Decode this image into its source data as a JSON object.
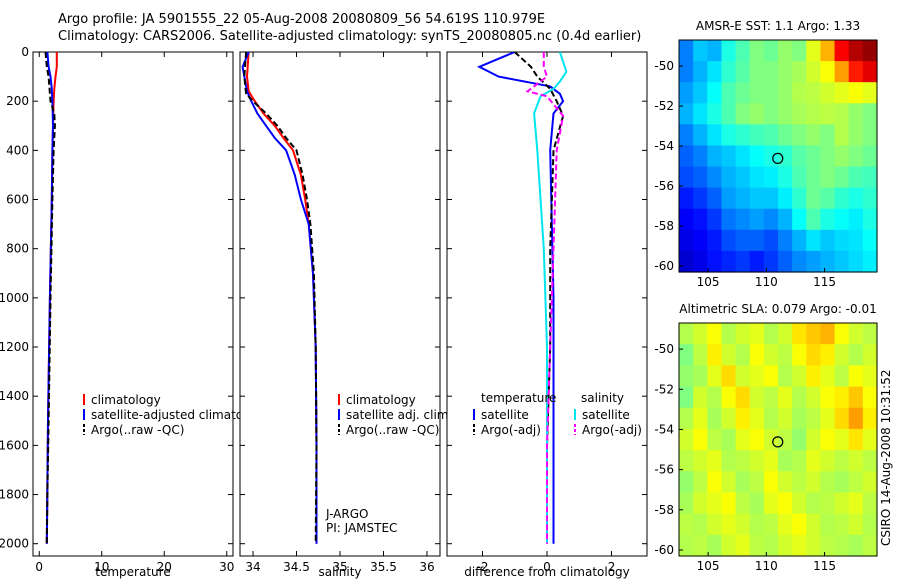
{
  "title": {
    "line1": "Argo profile: JA 5901555_22 05-Aug-2008 20080809_56 54.619S 110.979E",
    "line2": "Climatology: CARS2006. Satellite-adjusted climatology: synTS_20080805.nc (0.4d earlier)"
  },
  "colors": {
    "climatology": "#ff0000",
    "satellite": "#0000ff",
    "argo": "#000000",
    "satellite_salinity": "#00e5ee",
    "argo_salinity": "#ff00ff"
  },
  "chart_data": [
    {
      "id": "temperature",
      "type": "line",
      "xlabel": "temperature",
      "ylabel": "",
      "xlim": [
        -1,
        31
      ],
      "ylim": [
        2050,
        0
      ],
      "xticks": [
        0,
        10,
        20,
        30
      ],
      "xtick_labels": [
        "0",
        "10",
        "20",
        "30"
      ],
      "yticks": [
        0,
        200,
        400,
        600,
        800,
        1000,
        1200,
        1400,
        1600,
        1800,
        2000
      ],
      "ytick_labels": [
        "0",
        "200",
        "400",
        "600",
        "800",
        "1000",
        "1200",
        "1400",
        "1600",
        "1800",
        "2000"
      ],
      "legend": [
        "climatology",
        "satellite-adjusted climatology",
        "Argo(..raw -QC)"
      ],
      "series": [
        {
          "name": "climatology",
          "color": "#ff0000",
          "dash": "",
          "x": [
            2.8,
            2.8,
            2.6,
            2.4,
            2.3,
            2.2,
            2.1,
            2.0,
            1.7,
            1.4,
            1.2
          ],
          "y": [
            0,
            60,
            100,
            150,
            200,
            300,
            400,
            600,
            1000,
            1500,
            2000
          ]
        },
        {
          "name": "satellite-adjusted climatology",
          "color": "#0000ff",
          "dash": "",
          "x": [
            1.3,
            1.5,
            1.8,
            2.0,
            2.1,
            2.2,
            2.1,
            2.0,
            1.7,
            1.4,
            1.2
          ],
          "y": [
            0,
            60,
            100,
            150,
            200,
            300,
            400,
            600,
            1000,
            1500,
            2000
          ]
        },
        {
          "name": "Argo(..raw -QC)",
          "color": "#000000",
          "dash": "6,3",
          "x": [
            1.0,
            1.2,
            1.5,
            1.8,
            2.4,
            2.5,
            2.3,
            2.1,
            1.8,
            1.5,
            1.3,
            1.2
          ],
          "y": [
            0,
            60,
            100,
            200,
            250,
            300,
            400,
            600,
            1000,
            1500,
            1800,
            2000
          ]
        }
      ]
    },
    {
      "id": "salinity",
      "type": "line",
      "xlabel": "salinity",
      "ylabel": "",
      "xlim": [
        33.85,
        36.15
      ],
      "ylim": [
        2050,
        0
      ],
      "xticks": [
        34,
        34.5,
        35,
        35.5,
        36
      ],
      "xtick_labels": [
        "34",
        "34.5",
        "35",
        "35.5",
        "36"
      ],
      "yticks": [
        0,
        200,
        400,
        600,
        800,
        1000,
        1200,
        1400,
        1600,
        1800,
        2000
      ],
      "ytick_labels": [],
      "legend": [
        "climatology",
        "satellite adj. clim.",
        "Argo(..raw -QC)"
      ],
      "annotation": [
        "J-ARGO",
        "PI: JAMSTEC"
      ],
      "series": [
        {
          "name": "climatology",
          "color": "#ff0000",
          "dash": "",
          "x": [
            33.95,
            33.93,
            33.95,
            34.02,
            34.12,
            34.25,
            34.35,
            34.46,
            34.55,
            34.6,
            34.64,
            34.69,
            34.72,
            34.73,
            34.73
          ],
          "y": [
            0,
            100,
            160,
            200,
            250,
            300,
            350,
            400,
            500,
            600,
            700,
            900,
            1200,
            1600,
            2000
          ]
        },
        {
          "name": "satellite adj. clim.",
          "color": "#0000ff",
          "dash": "",
          "x": [
            33.95,
            33.88,
            33.93,
            33.98,
            34.05,
            34.15,
            34.25,
            34.38,
            34.48,
            34.55,
            34.64,
            34.69,
            34.72,
            34.73,
            34.73
          ],
          "y": [
            0,
            60,
            160,
            200,
            250,
            300,
            350,
            400,
            500,
            600,
            700,
            900,
            1200,
            1600,
            2000
          ]
        },
        {
          "name": "Argo(..raw -QC)",
          "color": "#000000",
          "dash": "6,3",
          "x": [
            33.92,
            33.9,
            33.92,
            34.0,
            34.15,
            34.28,
            34.38,
            34.5,
            34.57,
            34.62,
            34.66,
            34.7,
            34.72,
            34.73,
            34.72
          ],
          "y": [
            0,
            100,
            170,
            200,
            250,
            300,
            350,
            400,
            500,
            600,
            700,
            900,
            1200,
            1600,
            2000
          ]
        }
      ]
    },
    {
      "id": "difference",
      "type": "line",
      "xlabel": "difference from climatology",
      "ylabel": "",
      "xlim": [
        -3.1,
        3.1
      ],
      "ylim": [
        2050,
        0
      ],
      "xticks": [
        -2,
        0,
        2
      ],
      "xtick_labels": [
        "-2",
        "0",
        "2"
      ],
      "yticks": [
        0,
        200,
        400,
        600,
        800,
        1000,
        1200,
        1400,
        1600,
        1800,
        2000
      ],
      "ytick_labels": [],
      "legend_groups": [
        {
          "heading": "temperature",
          "items": [
            "satellite",
            "Argo(-adj)"
          ]
        },
        {
          "heading": "salinity",
          "items": [
            "satellite",
            "Argo(-adj)"
          ]
        }
      ],
      "series": [
        {
          "name": "temperature satellite",
          "color": "#0000ff",
          "dash": "",
          "x": [
            -1.0,
            -2.1,
            -1.5,
            0.1,
            0.4,
            0.5,
            0.2,
            0.1,
            0.2,
            0.2
          ],
          "y": [
            0,
            60,
            100,
            140,
            170,
            200,
            250,
            400,
            1000,
            2000
          ]
        },
        {
          "name": "temperature Argo(-adj)",
          "color": "#000000",
          "dash": "6,3",
          "x": [
            -1.0,
            -0.5,
            -0.3,
            0.1,
            0.3,
            0.5,
            0.2,
            0.1,
            0.1,
            0.0,
            0.0
          ],
          "y": [
            0,
            60,
            100,
            150,
            200,
            260,
            400,
            800,
            1200,
            1600,
            2000
          ]
        },
        {
          "name": "salinity satellite",
          "color": "#00e5ee",
          "dash": "",
          "x": [
            0.4,
            0.6,
            0.4,
            0.2,
            -0.2,
            -0.4,
            -0.3,
            -0.1,
            0.0,
            0.0
          ],
          "y": [
            0,
            80,
            120,
            150,
            180,
            250,
            400,
            800,
            1200,
            2000
          ]
        },
        {
          "name": "salinity Argo(-adj)",
          "color": "#ff00ff",
          "dash": "6,3",
          "x": [
            -0.1,
            -0.1,
            0.0,
            -0.6,
            0.0,
            0.5,
            0.3,
            0.2,
            0.1,
            0.0,
            0.0
          ],
          "y": [
            0,
            60,
            100,
            160,
            180,
            260,
            400,
            800,
            1200,
            1600,
            2000
          ]
        }
      ]
    },
    {
      "id": "sst_map",
      "type": "heatmap",
      "title": "AMSR-E SST: 1.1 Argo: 1.33",
      "xlim": [
        102.5,
        119.5
      ],
      "ylim": [
        -60.3,
        -48.7
      ],
      "xticks": [
        105,
        110,
        115
      ],
      "xtick_labels": [
        "105",
        "110",
        "115"
      ],
      "yticks": [
        -50,
        -52,
        -54,
        -56,
        -58,
        -60
      ],
      "ytick_labels": [
        "-50",
        "-52",
        "-54",
        "-56",
        "-58",
        "-60"
      ],
      "marker": [
        110.979,
        -54.619
      ],
      "grid_values": [
        [
          0.25,
          0.32,
          0.3,
          0.4,
          0.45,
          0.5,
          0.48,
          0.52,
          0.5,
          0.6,
          0.7,
          0.88,
          0.95,
          0.98
        ],
        [
          0.25,
          0.3,
          0.35,
          0.42,
          0.46,
          0.5,
          0.5,
          0.52,
          0.54,
          0.58,
          0.62,
          0.72,
          0.85,
          0.9
        ],
        [
          0.28,
          0.32,
          0.38,
          0.45,
          0.48,
          0.5,
          0.5,
          0.52,
          0.55,
          0.56,
          0.58,
          0.6,
          0.62,
          0.6
        ],
        [
          0.3,
          0.35,
          0.4,
          0.45,
          0.5,
          0.52,
          0.5,
          0.52,
          0.54,
          0.55,
          0.56,
          0.55,
          0.52,
          0.5
        ],
        [
          0.25,
          0.3,
          0.35,
          0.4,
          0.42,
          0.44,
          0.45,
          0.48,
          0.5,
          0.52,
          0.5,
          0.55,
          0.52,
          0.5
        ],
        [
          0.22,
          0.25,
          0.3,
          0.32,
          0.35,
          0.38,
          0.4,
          0.42,
          0.46,
          0.48,
          0.5,
          0.52,
          0.5,
          0.48
        ],
        [
          0.2,
          0.22,
          0.26,
          0.3,
          0.32,
          0.35,
          0.36,
          0.4,
          0.45,
          0.48,
          0.5,
          0.48,
          0.45,
          0.44
        ],
        [
          0.15,
          0.18,
          0.22,
          0.28,
          0.3,
          0.32,
          0.32,
          0.36,
          0.42,
          0.48,
          0.46,
          0.42,
          0.4,
          0.42
        ],
        [
          0.12,
          0.14,
          0.18,
          0.24,
          0.26,
          0.28,
          0.26,
          0.3,
          0.38,
          0.45,
          0.4,
          0.38,
          0.36,
          0.4
        ],
        [
          0.1,
          0.12,
          0.15,
          0.2,
          0.22,
          0.22,
          0.2,
          0.25,
          0.3,
          0.35,
          0.32,
          0.34,
          0.35,
          0.38
        ],
        [
          0.08,
          0.1,
          0.14,
          0.16,
          0.18,
          0.15,
          0.18,
          0.22,
          0.26,
          0.28,
          0.3,
          0.32,
          0.34,
          0.36
        ]
      ]
    },
    {
      "id": "sla_map",
      "type": "heatmap",
      "title": "Altimetric SLA: 0.079 Argo: -0.01",
      "xlim": [
        102.5,
        119.5
      ],
      "ylim": [
        -60.3,
        -48.7
      ],
      "xticks": [
        105,
        110,
        115
      ],
      "xtick_labels": [
        "105",
        "110",
        "115"
      ],
      "yticks": [
        -50,
        -52,
        -54,
        -56,
        -58,
        -60
      ],
      "ytick_labels": [
        "-50",
        "-52",
        "-54",
        "-56",
        "-58",
        "-60"
      ],
      "marker": [
        110.979,
        -54.619
      ],
      "grid_values": [
        [
          0.55,
          0.58,
          0.62,
          0.55,
          0.58,
          0.6,
          0.55,
          0.58,
          0.65,
          0.68,
          0.7,
          0.62,
          0.58,
          0.56
        ],
        [
          0.5,
          0.56,
          0.64,
          0.58,
          0.55,
          0.62,
          0.58,
          0.56,
          0.62,
          0.66,
          0.64,
          0.58,
          0.55,
          0.58
        ],
        [
          0.52,
          0.54,
          0.6,
          0.66,
          0.58,
          0.6,
          0.62,
          0.55,
          0.58,
          0.64,
          0.6,
          0.56,
          0.62,
          0.6
        ],
        [
          0.5,
          0.58,
          0.55,
          0.62,
          0.66,
          0.58,
          0.56,
          0.6,
          0.55,
          0.58,
          0.62,
          0.64,
          0.68,
          0.62
        ],
        [
          0.55,
          0.6,
          0.54,
          0.58,
          0.64,
          0.6,
          0.55,
          0.58,
          0.54,
          0.56,
          0.6,
          0.66,
          0.72,
          0.64
        ],
        [
          0.58,
          0.62,
          0.56,
          0.54,
          0.6,
          0.62,
          0.58,
          0.56,
          0.52,
          0.58,
          0.62,
          0.6,
          0.65,
          0.6
        ],
        [
          0.56,
          0.58,
          0.6,
          0.55,
          0.56,
          0.58,
          0.6,
          0.54,
          0.55,
          0.6,
          0.58,
          0.56,
          0.58,
          0.56
        ],
        [
          0.52,
          0.56,
          0.62,
          0.58,
          0.54,
          0.56,
          0.62,
          0.58,
          0.56,
          0.58,
          0.55,
          0.54,
          0.56,
          0.58
        ],
        [
          0.54,
          0.58,
          0.6,
          0.62,
          0.56,
          0.54,
          0.6,
          0.62,
          0.58,
          0.55,
          0.56,
          0.58,
          0.6,
          0.56
        ],
        [
          0.56,
          0.55,
          0.58,
          0.6,
          0.58,
          0.55,
          0.56,
          0.6,
          0.62,
          0.58,
          0.55,
          0.56,
          0.58,
          0.55
        ],
        [
          0.55,
          0.56,
          0.54,
          0.58,
          0.6,
          0.56,
          0.55,
          0.58,
          0.6,
          0.58,
          0.56,
          0.55,
          0.54,
          0.56
        ]
      ]
    }
  ],
  "side_label": "CSIRO 14-Aug-2008 10:31:52"
}
